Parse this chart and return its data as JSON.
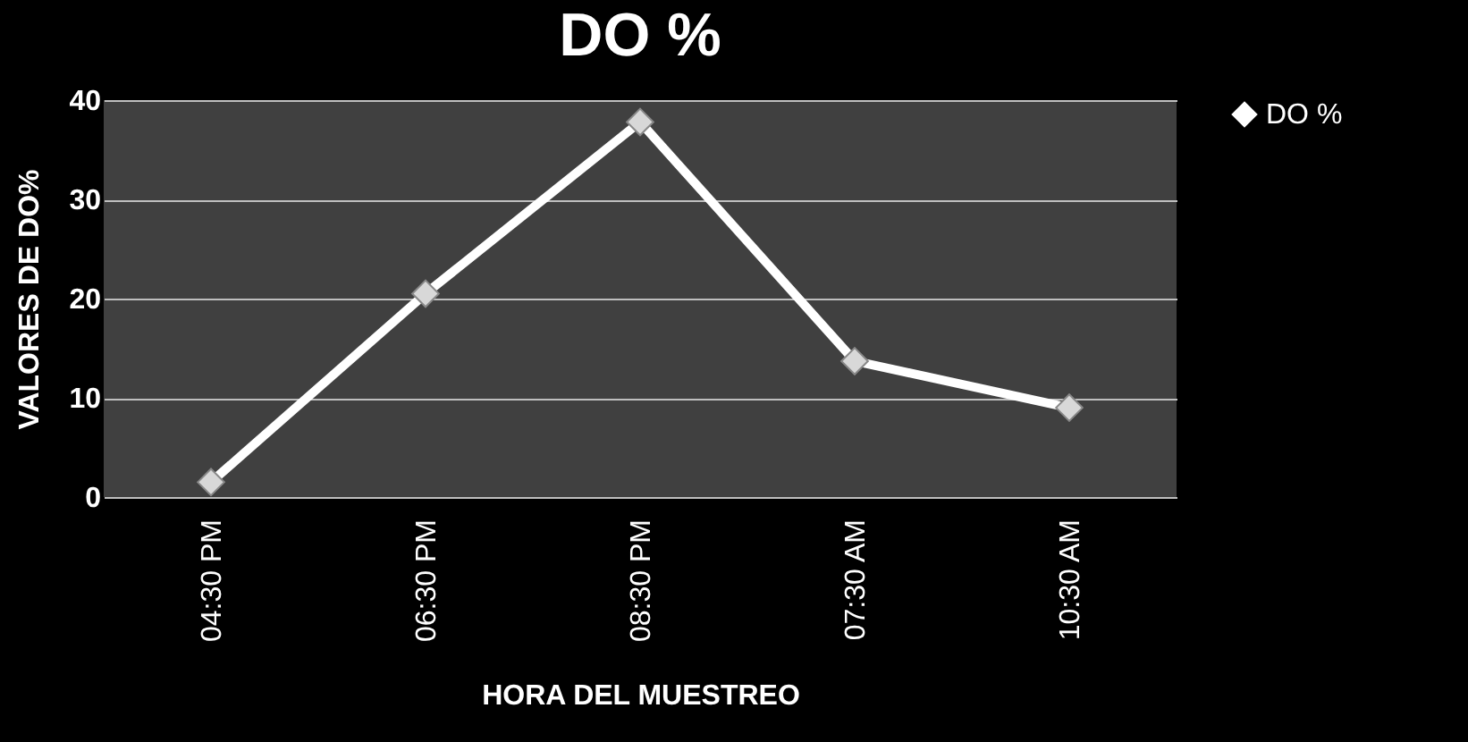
{
  "chart_data": {
    "type": "line",
    "title": "DO %",
    "xlabel": "HORA DEL MUESTREO",
    "ylabel": "VALORES DE DO%",
    "categories": [
      "04:30 PM",
      "06:30 PM",
      "08:30 PM",
      "07:30 AM",
      "10:30 AM"
    ],
    "series": [
      {
        "name": "DO %",
        "color": "#ffffff",
        "values": [
          1.5,
          20.5,
          37.8,
          13.7,
          9
        ]
      }
    ],
    "ylim": [
      0,
      40
    ],
    "yticks": [
      0,
      10,
      20,
      30,
      40
    ],
    "grid": "y",
    "legend": "right",
    "marker": "diamond",
    "line_style": "solid"
  }
}
